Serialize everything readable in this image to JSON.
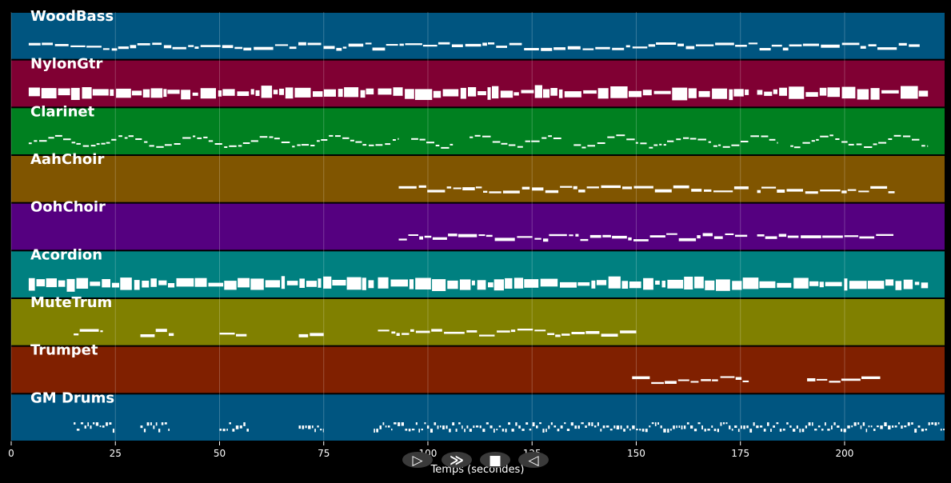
{
  "chart_data": {
    "type": "piano-roll",
    "xlabel": "Temps (secondes)",
    "xlim": [
      0,
      224
    ],
    "xticks": [
      0,
      25,
      50,
      75,
      100,
      125,
      150,
      175,
      200
    ],
    "grid": true,
    "tracks": [
      {
        "name": "WoodBass",
        "color": "#005580",
        "pattern": "line",
        "segments": [
          [
            4.2,
            218
          ]
        ]
      },
      {
        "name": "NylonGtr",
        "color": "#800033",
        "pattern": "block",
        "segments": [
          [
            4.2,
            87
          ],
          [
            88,
            177
          ],
          [
            179,
            220
          ]
        ]
      },
      {
        "name": "Clarinet",
        "color": "#008020",
        "pattern": "wave",
        "segments": [
          [
            4.2,
            93
          ],
          [
            96,
            106
          ],
          [
            110,
            132
          ],
          [
            135,
            184
          ],
          [
            187,
            220
          ]
        ]
      },
      {
        "name": "AahChoir",
        "color": "#805500",
        "pattern": "line",
        "segments": [
          [
            93,
            177
          ],
          [
            179,
            212
          ]
        ]
      },
      {
        "name": "OohChoir",
        "color": "#550080",
        "pattern": "line",
        "segments": [
          [
            93,
            177
          ],
          [
            179,
            212
          ]
        ]
      },
      {
        "name": "Acordion",
        "color": "#008080",
        "pattern": "block",
        "segments": [
          [
            4.2,
            87
          ],
          [
            88,
            220
          ]
        ]
      },
      {
        "name": "MuteTrum",
        "color": "#808000",
        "pattern": "line",
        "segments": [
          [
            15,
            22
          ],
          [
            31,
            39
          ],
          [
            50,
            57
          ],
          [
            69,
            75
          ],
          [
            88,
            150
          ]
        ]
      },
      {
        "name": "Trumpet",
        "color": "#802000",
        "pattern": "line",
        "segments": [
          [
            149,
            177
          ],
          [
            191,
            209
          ]
        ]
      },
      {
        "name": "GM Drums",
        "color": "#005580",
        "pattern": "drums",
        "segments": [
          [
            15,
            25
          ],
          [
            31,
            38
          ],
          [
            50,
            57
          ],
          [
            69,
            75
          ],
          [
            87,
            224
          ]
        ]
      }
    ]
  },
  "transport": {
    "buttons": [
      {
        "name": "play-icon",
        "symbol": "▷"
      },
      {
        "name": "forward-icon",
        "symbol": "≫"
      },
      {
        "name": "stop-icon",
        "symbol": "■"
      },
      {
        "name": "rewind-icon",
        "symbol": "◁"
      }
    ]
  }
}
